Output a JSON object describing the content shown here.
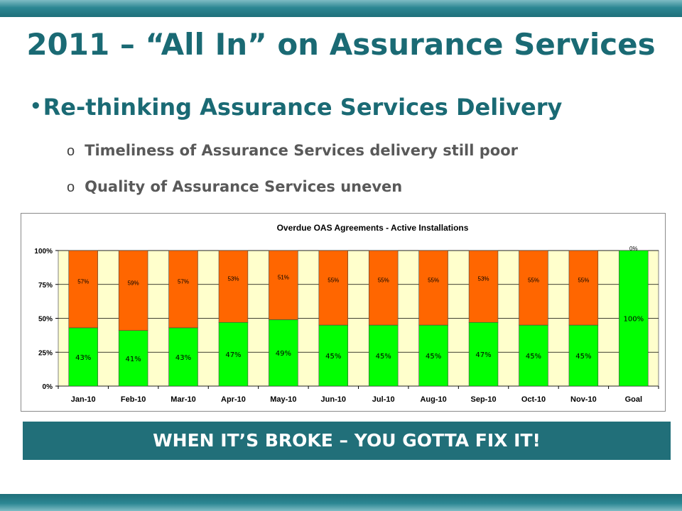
{
  "slide": {
    "title": "2011 – “All In” on Assurance Services",
    "bullet": "Re-thinking Assurance Services Delivery",
    "bullet_marker": "•",
    "sub_marker": "o",
    "sub_items": [
      "Timeliness of Assurance Services delivery still poor",
      "Quality of Assurance Services uneven"
    ],
    "banner": "WHEN IT’S BROKE – YOU GOTTA FIX IT!"
  },
  "colors": {
    "accent": "#1a6a74",
    "banner": "#216f79",
    "on_time": "#00ff00",
    "overdue": "#ff6600",
    "plot_bg": "#ffffcc"
  },
  "chart_data": {
    "type": "bar",
    "stacked": true,
    "percent": true,
    "title": "Overdue OAS Agreements - Active Installations",
    "categories": [
      "Jan-10",
      "Feb-10",
      "Mar-10",
      "Apr-10",
      "May-10",
      "Jun-10",
      "Jul-10",
      "Aug-10",
      "Sep-10",
      "Oct-10",
      "Nov-10",
      "Goal"
    ],
    "series": [
      {
        "color": "#00ff00",
        "values": [
          43,
          41,
          43,
          47,
          49,
          45,
          45,
          45,
          47,
          45,
          45,
          100
        ]
      },
      {
        "color": "#ff6600",
        "values": [
          57,
          59,
          57,
          53,
          51,
          55,
          55,
          55,
          53,
          55,
          55,
          0
        ]
      }
    ],
    "yticks": [
      "0%",
      "25%",
      "50%",
      "75%",
      "100%"
    ],
    "ylim": [
      0,
      100
    ],
    "grid": true,
    "legend": "none"
  }
}
